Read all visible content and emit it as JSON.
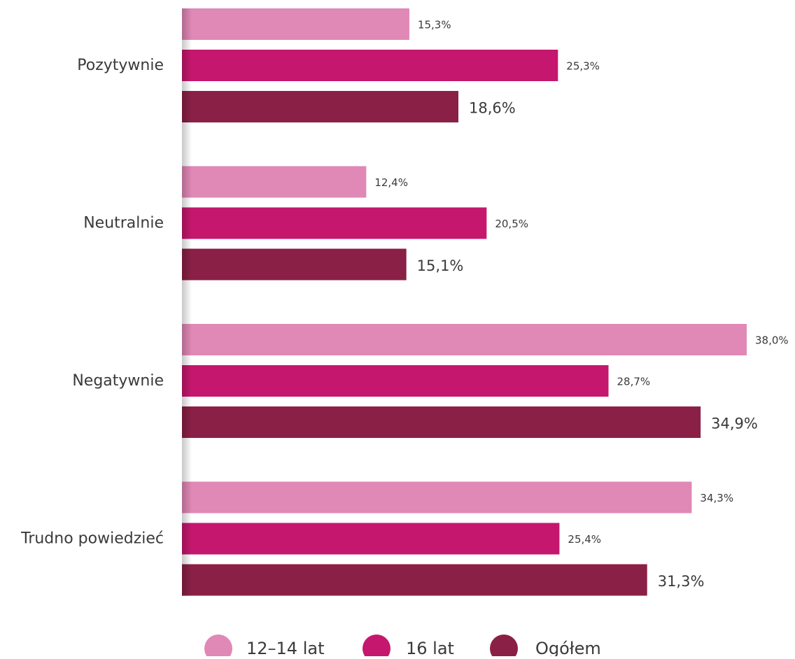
{
  "chart_data": {
    "type": "bar",
    "orientation": "horizontal",
    "categories": [
      "Pozytywnie",
      "Neutralnie",
      "Negatywnie",
      "Trudno powiedzieć"
    ],
    "series": [
      {
        "name": "12–14 lat",
        "color": "#e088b6",
        "values": [
          15.3,
          12.4,
          38.0,
          34.3
        ],
        "labels": [
          "15,3%",
          "12,4%",
          "38,0%",
          "34,3%"
        ]
      },
      {
        "name": "16 lat",
        "color": "#c5176e",
        "values": [
          25.3,
          20.5,
          28.7,
          25.4
        ],
        "labels": [
          "25,3%",
          "20,5%",
          "28,7%",
          "25,4%"
        ]
      },
      {
        "name": "Ogółem",
        "color": "#8b2046",
        "values": [
          18.6,
          15.1,
          34.9,
          31.3
        ],
        "labels": [
          "18,6%",
          "15,1%",
          "34,9%",
          "31,3%"
        ]
      }
    ],
    "xlim": [
      0,
      38
    ],
    "grid": false,
    "legend_position": "bottom"
  }
}
